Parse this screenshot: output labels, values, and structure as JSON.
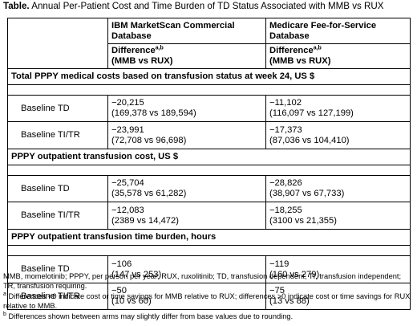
{
  "caption": {
    "prefix": "Table.",
    "text": "Annual Per-Patient Cost and Time Burden of TD Status Associated with MMB vs RUX"
  },
  "columns": {
    "col1": {
      "title": "IBM MarketScan Commercial Database",
      "sub": "Difference",
      "sub_sup": "a,b",
      "sub2": "(MMB vs RUX)"
    },
    "col2": {
      "title": "Medicare Fee-for-Service Database",
      "sub": "Difference",
      "sub_sup": "a,b",
      "sub2": "(MMB vs RUX)"
    }
  },
  "sections": [
    {
      "title": "Total PPPY medical costs based on transfusion status at week 24, US $",
      "rows": [
        {
          "label": "Baseline TD",
          "c1_diff": "−20,215",
          "c1_range": "(169,378 vs 189,594)",
          "c2_diff": "−11,102",
          "c2_range": "(116,097 vs 127,199)"
        },
        {
          "label": "Baseline TI/TR",
          "c1_diff": "−23,991",
          "c1_range": "(72,708 vs 96,698)",
          "c2_diff": "−17,373",
          "c2_range": "(87,036 vs 104,410)"
        }
      ]
    },
    {
      "title": "PPPY outpatient transfusion cost, US $",
      "rows": [
        {
          "label": "Baseline TD",
          "c1_diff": "−25,704",
          "c1_range": "(35,578 vs 61,282)",
          "c2_diff": "−28,826",
          "c2_range": "(38,907 vs 67,733)"
        },
        {
          "label": "Baseline TI/TR",
          "c1_diff": "−12,083",
          "c1_range": "(2389 vs 14,472)",
          "c2_diff": "−18,255",
          "c2_range": "(3100 vs 21,355)"
        }
      ]
    },
    {
      "title": "PPPY outpatient transfusion time burden, hours",
      "rows": [
        {
          "label": "Baseline TD",
          "c1_diff": "−106",
          "c1_range": "(147 vs 253)",
          "c2_diff": "−119",
          "c2_range": "(160 vs 279)"
        },
        {
          "label": "Baseline TI/TR",
          "c1_diff": "−50",
          "c1_range": "(10 vs 60)",
          "c2_diff": "−75",
          "c2_range": "(13 vs 88)"
        }
      ]
    }
  ],
  "footnotes": {
    "abbreviations": "MMB, momelotinib; PPPY, per person per year; RUX, ruxolitinib; TD, transfusion dependent; TI, transfusion independent; TR, transfusion requiring.",
    "a_mark": "a",
    "a_text": " Differences <0 indicate cost or time savings for MMB relative to RUX; differences >0 indicate cost or time savings for RUX relative to MMB.",
    "b_mark": "b",
    "b_text": " Differences shown between arms may slightly differ from base values due to rounding."
  }
}
